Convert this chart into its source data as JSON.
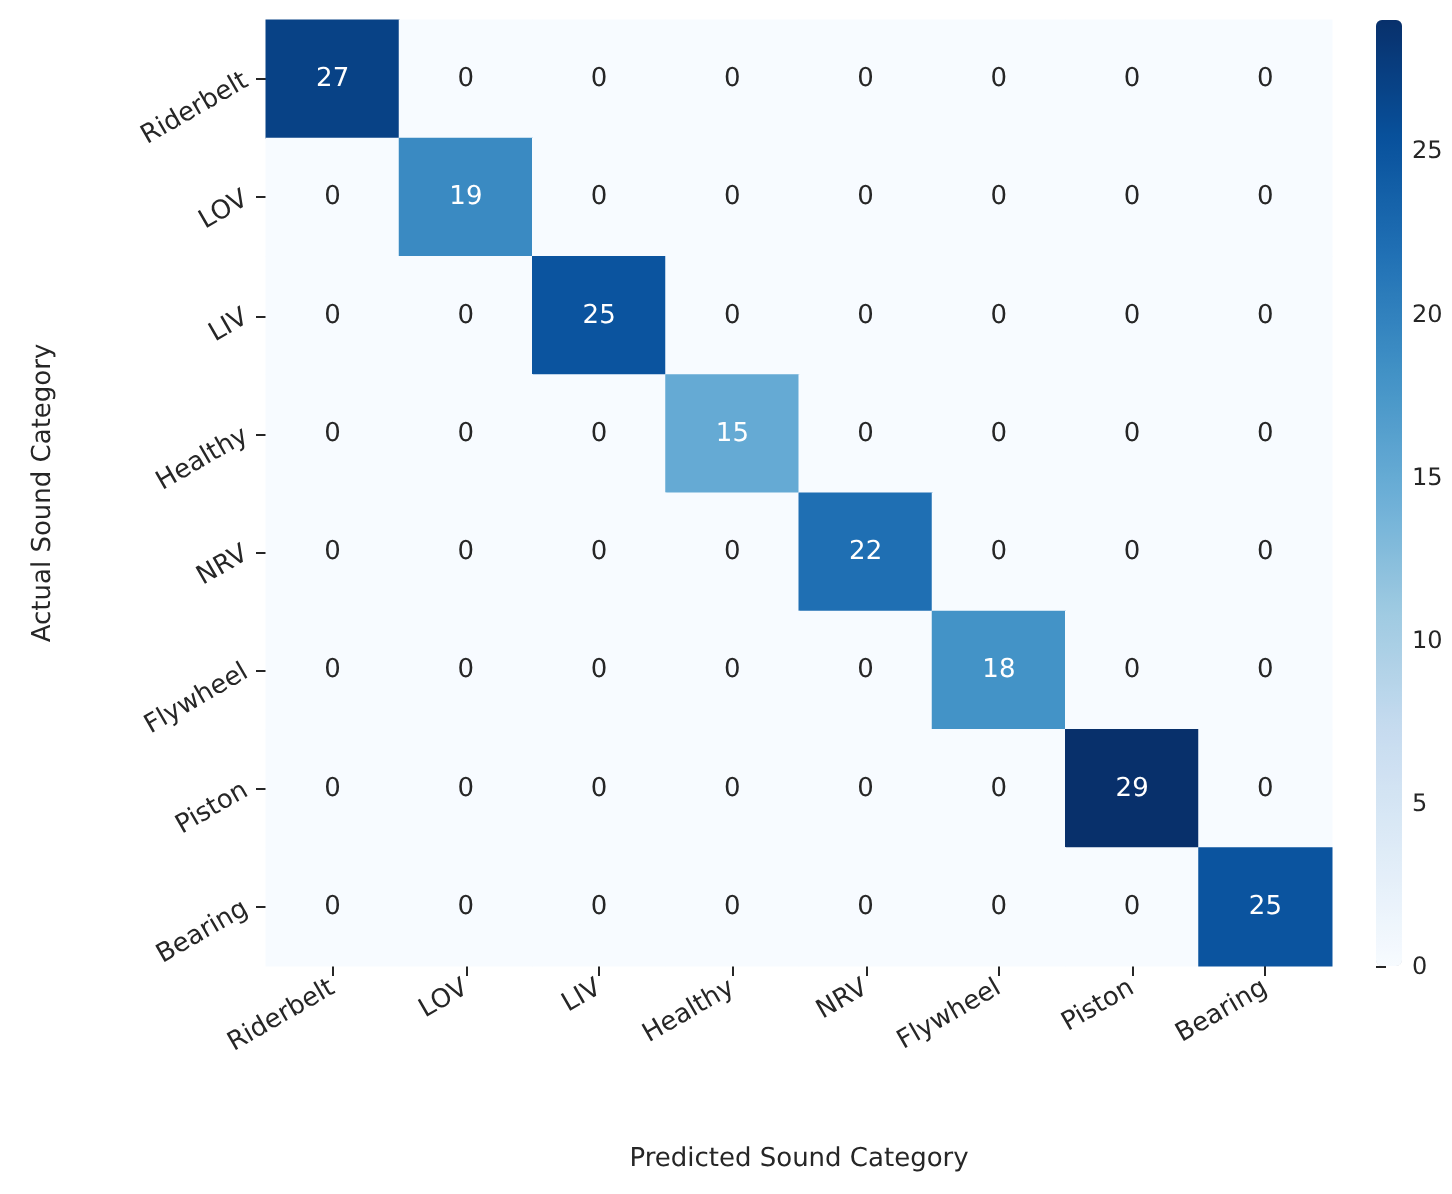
{
  "chart_data": {
    "type": "heatmap",
    "xlabel": "Predicted Sound Category",
    "ylabel": "Actual Sound Category",
    "categories": [
      "Riderbelt",
      "LOV",
      "LIV",
      "Healthy",
      "NRV",
      "Flywheel",
      "Piston",
      "Bearing"
    ],
    "y_categories": [
      "Riderbelt",
      "LOV",
      "LIV",
      "Healthy",
      "NRV",
      "Flywheel",
      "Piston",
      "Bearing"
    ],
    "cells": [
      [
        27,
        0,
        0,
        0,
        0,
        0,
        0,
        0
      ],
      [
        0,
        19,
        0,
        0,
        0,
        0,
        0,
        0
      ],
      [
        0,
        0,
        25,
        0,
        0,
        0,
        0,
        0
      ],
      [
        0,
        0,
        0,
        15,
        0,
        0,
        0,
        0
      ],
      [
        0,
        0,
        0,
        0,
        22,
        0,
        0,
        0
      ],
      [
        0,
        0,
        0,
        0,
        0,
        18,
        0,
        0
      ],
      [
        0,
        0,
        0,
        0,
        0,
        0,
        29,
        0
      ],
      [
        0,
        0,
        0,
        0,
        0,
        0,
        0,
        25
      ]
    ],
    "data_labels": true,
    "clim": [
      0,
      29
    ],
    "cticks": [
      0,
      5,
      10,
      15,
      20,
      25
    ]
  }
}
